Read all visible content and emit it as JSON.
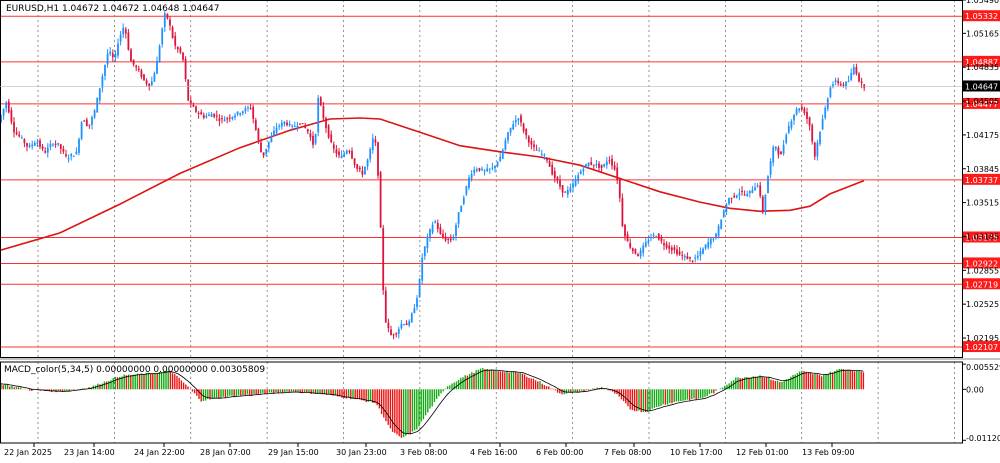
{
  "window": {
    "title": "EURUSD,H1  1.04672 1.04672 1.04648 1.04647"
  },
  "colors": {
    "background": "#ffffff",
    "grid": "#666666",
    "bull": "#1e90ff",
    "bear": "#dc143c",
    "ma": "#dc1414",
    "level": "#ff3030",
    "level_label_bg": "#ff1a1a",
    "current_price_bg": "#000000",
    "macd_up": "#11aa11",
    "macd_down": "#ee1111",
    "signal": "#000000"
  },
  "chart_data": [
    {
      "type": "candlestick",
      "symbol": "EURUSD",
      "timeframe": "H1",
      "ylim": [
        1.0201,
        1.0549
      ],
      "y_ticks": [
        "1.05490",
        "1.05165",
        "1.04835",
        "1.04505",
        "1.04175",
        "1.03845",
        "1.03515",
        "1.03185",
        "1.02855",
        "1.02525",
        "1.02195"
      ],
      "x_ticks": [
        "22 Jan 2025",
        "23 Jan 14:00",
        "24 Jan 22:00",
        "28 Jan 07:00",
        "29 Jan 15:00",
        "30 Jan 23:00",
        "3 Feb 08:00",
        "4 Feb 16:00",
        "6 Feb 00:00",
        "7 Feb 08:00",
        "10 Feb 17:00",
        "12 Feb 01:00",
        "13 Feb 09:00"
      ],
      "horizontal_levels": [
        "1.05332",
        "1.04887",
        "1.04477",
        "1.03737",
        "1.03175",
        "1.02922",
        "1.02719",
        "1.02107"
      ],
      "current_price": "1.04647",
      "price_path": [
        {
          "t": 0,
          "p": 1.043
        },
        {
          "t": 8,
          "p": 1.045
        },
        {
          "t": 16,
          "p": 1.042
        },
        {
          "t": 22,
          "p": 1.0415
        },
        {
          "t": 30,
          "p": 1.0405
        },
        {
          "t": 38,
          "p": 1.0412
        },
        {
          "t": 46,
          "p": 1.04
        },
        {
          "t": 54,
          "p": 1.041
        },
        {
          "t": 60,
          "p": 1.0408
        },
        {
          "t": 68,
          "p": 1.0395
        },
        {
          "t": 78,
          "p": 1.04
        },
        {
          "t": 84,
          "p": 1.0435
        },
        {
          "t": 90,
          "p": 1.0425
        },
        {
          "t": 96,
          "p": 1.044
        },
        {
          "t": 104,
          "p": 1.0475
        },
        {
          "t": 110,
          "p": 1.05
        },
        {
          "t": 116,
          "p": 1.049
        },
        {
          "t": 120,
          "p": 1.051
        },
        {
          "t": 126,
          "p": 1.0525
        },
        {
          "t": 132,
          "p": 1.049
        },
        {
          "t": 140,
          "p": 1.048
        },
        {
          "t": 146,
          "p": 1.047
        },
        {
          "t": 152,
          "p": 1.0465
        },
        {
          "t": 158,
          "p": 1.0485
        },
        {
          "t": 162,
          "p": 1.051
        },
        {
          "t": 166,
          "p": 1.0535
        },
        {
          "t": 170,
          "p": 1.053
        },
        {
          "t": 176,
          "p": 1.0505
        },
        {
          "t": 184,
          "p": 1.0495
        },
        {
          "t": 190,
          "p": 1.045
        },
        {
          "t": 198,
          "p": 1.044
        },
        {
          "t": 206,
          "p": 1.0435
        },
        {
          "t": 214,
          "p": 1.0438
        },
        {
          "t": 222,
          "p": 1.0432
        },
        {
          "t": 232,
          "p": 1.0435
        },
        {
          "t": 242,
          "p": 1.044
        },
        {
          "t": 252,
          "p": 1.0445
        },
        {
          "t": 258,
          "p": 1.042
        },
        {
          "t": 264,
          "p": 1.0395
        },
        {
          "t": 270,
          "p": 1.041
        },
        {
          "t": 278,
          "p": 1.0425
        },
        {
          "t": 286,
          "p": 1.043
        },
        {
          "t": 294,
          "p": 1.0425
        },
        {
          "t": 302,
          "p": 1.043
        },
        {
          "t": 310,
          "p": 1.042
        },
        {
          "t": 316,
          "p": 1.0405
        },
        {
          "t": 320,
          "p": 1.0455
        },
        {
          "t": 326,
          "p": 1.043
        },
        {
          "t": 334,
          "p": 1.0405
        },
        {
          "t": 342,
          "p": 1.0395
        },
        {
          "t": 350,
          "p": 1.0405
        },
        {
          "t": 358,
          "p": 1.0385
        },
        {
          "t": 364,
          "p": 1.038
        },
        {
          "t": 370,
          "p": 1.0395
        },
        {
          "t": 376,
          "p": 1.042
        },
        {
          "t": 380,
          "p": 1.0375
        },
        {
          "t": 386,
          "p": 1.024
        },
        {
          "t": 392,
          "p": 1.0222
        },
        {
          "t": 398,
          "p": 1.0225
        },
        {
          "t": 404,
          "p": 1.0235
        },
        {
          "t": 410,
          "p": 1.0232
        },
        {
          "t": 416,
          "p": 1.025
        },
        {
          "t": 420,
          "p": 1.0265
        },
        {
          "t": 424,
          "p": 1.03
        },
        {
          "t": 430,
          "p": 1.032
        },
        {
          "t": 436,
          "p": 1.0335
        },
        {
          "t": 442,
          "p": 1.032
        },
        {
          "t": 448,
          "p": 1.0315
        },
        {
          "t": 454,
          "p": 1.0315
        },
        {
          "t": 460,
          "p": 1.034
        },
        {
          "t": 466,
          "p": 1.036
        },
        {
          "t": 472,
          "p": 1.038
        },
        {
          "t": 478,
          "p": 1.0385
        },
        {
          "t": 486,
          "p": 1.0382
        },
        {
          "t": 494,
          "p": 1.0385
        },
        {
          "t": 502,
          "p": 1.0395
        },
        {
          "t": 508,
          "p": 1.0415
        },
        {
          "t": 514,
          "p": 1.0428
        },
        {
          "t": 520,
          "p": 1.0435
        },
        {
          "t": 526,
          "p": 1.042
        },
        {
          "t": 534,
          "p": 1.0405
        },
        {
          "t": 542,
          "p": 1.04
        },
        {
          "t": 548,
          "p": 1.0395
        },
        {
          "t": 554,
          "p": 1.038
        },
        {
          "t": 560,
          "p": 1.037
        },
        {
          "t": 566,
          "p": 1.036
        },
        {
          "t": 572,
          "p": 1.0365
        },
        {
          "t": 578,
          "p": 1.0375
        },
        {
          "t": 584,
          "p": 1.0385
        },
        {
          "t": 590,
          "p": 1.039
        },
        {
          "t": 598,
          "p": 1.0388
        },
        {
          "t": 604,
          "p": 1.0385
        },
        {
          "t": 610,
          "p": 1.0395
        },
        {
          "t": 616,
          "p": 1.0385
        },
        {
          "t": 620,
          "p": 1.037
        },
        {
          "t": 624,
          "p": 1.033
        },
        {
          "t": 628,
          "p": 1.0315
        },
        {
          "t": 634,
          "p": 1.0305
        },
        {
          "t": 640,
          "p": 1.03
        },
        {
          "t": 646,
          "p": 1.031
        },
        {
          "t": 652,
          "p": 1.0318
        },
        {
          "t": 658,
          "p": 1.032
        },
        {
          "t": 664,
          "p": 1.0312
        },
        {
          "t": 670,
          "p": 1.0308
        },
        {
          "t": 676,
          "p": 1.0305
        },
        {
          "t": 682,
          "p": 1.03
        },
        {
          "t": 688,
          "p": 1.0298
        },
        {
          "t": 694,
          "p": 1.0295
        },
        {
          "t": 700,
          "p": 1.03
        },
        {
          "t": 706,
          "p": 1.0308
        },
        {
          "t": 712,
          "p": 1.0315
        },
        {
          "t": 718,
          "p": 1.032
        },
        {
          "t": 724,
          "p": 1.034
        },
        {
          "t": 730,
          "p": 1.0355
        },
        {
          "t": 736,
          "p": 1.0358
        },
        {
          "t": 742,
          "p": 1.0362
        },
        {
          "t": 748,
          "p": 1.0358
        },
        {
          "t": 754,
          "p": 1.0365
        },
        {
          "t": 760,
          "p": 1.037
        },
        {
          "t": 764,
          "p": 1.034
        },
        {
          "t": 770,
          "p": 1.038
        },
        {
          "t": 776,
          "p": 1.041
        },
        {
          "t": 782,
          "p": 1.0395
        },
        {
          "t": 788,
          "p": 1.042
        },
        {
          "t": 794,
          "p": 1.0435
        },
        {
          "t": 800,
          "p": 1.0445
        },
        {
          "t": 806,
          "p": 1.044
        },
        {
          "t": 812,
          "p": 1.0425
        },
        {
          "t": 816,
          "p": 1.0395
        },
        {
          "t": 820,
          "p": 1.0415
        },
        {
          "t": 826,
          "p": 1.044
        },
        {
          "t": 832,
          "p": 1.0465
        },
        {
          "t": 838,
          "p": 1.047
        },
        {
          "t": 844,
          "p": 1.0465
        },
        {
          "t": 850,
          "p": 1.047
        },
        {
          "t": 856,
          "p": 1.0485
        },
        {
          "t": 860,
          "p": 1.0472
        },
        {
          "t": 864,
          "p": 1.0465
        }
      ],
      "moving_average": [
        {
          "t": 0,
          "p": 1.0305
        },
        {
          "t": 60,
          "p": 1.0322
        },
        {
          "t": 120,
          "p": 1.035
        },
        {
          "t": 180,
          "p": 1.038
        },
        {
          "t": 240,
          "p": 1.0405
        },
        {
          "t": 290,
          "p": 1.0422
        },
        {
          "t": 330,
          "p": 1.0433
        },
        {
          "t": 360,
          "p": 1.0434
        },
        {
          "t": 380,
          "p": 1.0433
        },
        {
          "t": 420,
          "p": 1.042
        },
        {
          "t": 460,
          "p": 1.0407
        },
        {
          "t": 500,
          "p": 1.0401
        },
        {
          "t": 540,
          "p": 1.0396
        },
        {
          "t": 580,
          "p": 1.0388
        },
        {
          "t": 620,
          "p": 1.0375
        },
        {
          "t": 660,
          "p": 1.0362
        },
        {
          "t": 700,
          "p": 1.0352
        },
        {
          "t": 730,
          "p": 1.0346
        },
        {
          "t": 760,
          "p": 1.0343
        },
        {
          "t": 790,
          "p": 1.0344
        },
        {
          "t": 810,
          "p": 1.0348
        },
        {
          "t": 830,
          "p": 1.036
        },
        {
          "t": 864,
          "p": 1.0373
        }
      ]
    },
    {
      "type": "bar",
      "title": "MACD_color(5,34,5) 0.00000000 0.00000000 0.00305809",
      "ylim": [
        -0.0118,
        0.006
      ],
      "y_ticks": [
        "0.0055297",
        "0.00",
        "-0.0112032"
      ],
      "histogram": [
        {
          "t": 0,
          "v": 0.0012
        },
        {
          "t": 30,
          "v": -0.0002
        },
        {
          "t": 60,
          "v": -0.0005
        },
        {
          "t": 90,
          "v": 0.0005
        },
        {
          "t": 120,
          "v": 0.003
        },
        {
          "t": 150,
          "v": 0.0035
        },
        {
          "t": 170,
          "v": 0.004
        },
        {
          "t": 185,
          "v": 0.001
        },
        {
          "t": 200,
          "v": -0.0025
        },
        {
          "t": 230,
          "v": -0.0015
        },
        {
          "t": 260,
          "v": -0.001
        },
        {
          "t": 290,
          "v": -0.0005
        },
        {
          "t": 320,
          "v": -0.001
        },
        {
          "t": 350,
          "v": -0.002
        },
        {
          "t": 375,
          "v": -0.003
        },
        {
          "t": 390,
          "v": -0.009
        },
        {
          "t": 400,
          "v": -0.0108
        },
        {
          "t": 415,
          "v": -0.009
        },
        {
          "t": 430,
          "v": -0.004
        },
        {
          "t": 445,
          "v": 0.0005
        },
        {
          "t": 460,
          "v": 0.0025
        },
        {
          "t": 480,
          "v": 0.0045
        },
        {
          "t": 500,
          "v": 0.004
        },
        {
          "t": 520,
          "v": 0.0035
        },
        {
          "t": 540,
          "v": 0.0015
        },
        {
          "t": 560,
          "v": -0.001
        },
        {
          "t": 580,
          "v": -0.0005
        },
        {
          "t": 600,
          "v": 0.0005
        },
        {
          "t": 615,
          "v": -0.001
        },
        {
          "t": 630,
          "v": -0.0045
        },
        {
          "t": 645,
          "v": -0.005
        },
        {
          "t": 660,
          "v": -0.0035
        },
        {
          "t": 680,
          "v": -0.0025
        },
        {
          "t": 700,
          "v": -0.002
        },
        {
          "t": 715,
          "v": -0.0005
        },
        {
          "t": 735,
          "v": 0.0025
        },
        {
          "t": 760,
          "v": 0.003
        },
        {
          "t": 780,
          "v": 0.0015
        },
        {
          "t": 800,
          "v": 0.004
        },
        {
          "t": 820,
          "v": 0.003
        },
        {
          "t": 840,
          "v": 0.0045
        },
        {
          "t": 864,
          "v": 0.0038
        }
      ]
    }
  ]
}
